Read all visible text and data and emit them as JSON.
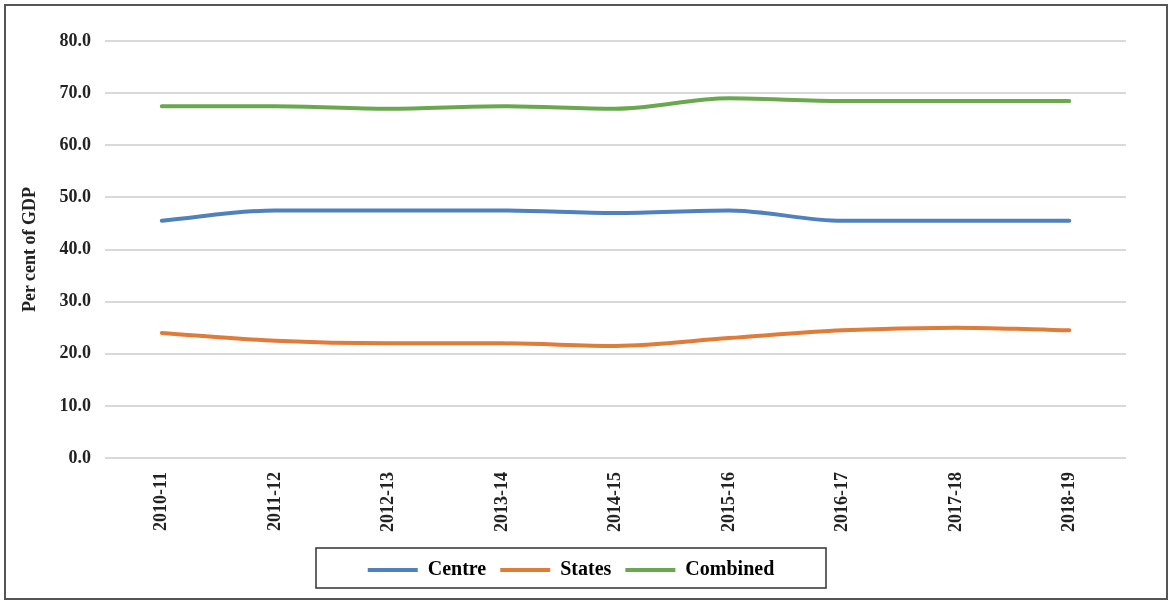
{
  "chart_data": {
    "type": "line",
    "ylabel": "Per cent of GDP",
    "categories": [
      "2010-11",
      "2011-12",
      "2012-13",
      "2013-14",
      "2014-15",
      "2015-16",
      "2016-17",
      "2017-18",
      "2018-19"
    ],
    "series": [
      {
        "name": "Centre",
        "color": "#4f81bd",
        "values": [
          45.5,
          47.5,
          47.5,
          47.5,
          47.0,
          47.5,
          45.5,
          45.5,
          45.5
        ]
      },
      {
        "name": "States",
        "color": "#e07b39",
        "values": [
          24.0,
          22.5,
          22.0,
          22.0,
          21.5,
          23.0,
          24.5,
          25.0,
          24.5
        ]
      },
      {
        "name": "Combined",
        "color": "#6aa84f",
        "values": [
          67.5,
          67.5,
          67.0,
          67.5,
          67.0,
          69.0,
          68.5,
          68.5,
          68.5
        ]
      }
    ],
    "ylim": [
      0,
      80
    ],
    "yticks": [
      {
        "value": 0,
        "label": "0.0"
      },
      {
        "value": 10,
        "label": "10.0"
      },
      {
        "value": 20,
        "label": "20.0"
      },
      {
        "value": 30,
        "label": "30.0"
      },
      {
        "value": 40,
        "label": "40.0"
      },
      {
        "value": 50,
        "label": "50.0"
      },
      {
        "value": 60,
        "label": "60.0"
      },
      {
        "value": 70,
        "label": "70.0"
      },
      {
        "value": 80,
        "label": "80.0"
      }
    ],
    "grid": "y",
    "legend": "bottom",
    "marker": "none",
    "line_style": "solid"
  }
}
